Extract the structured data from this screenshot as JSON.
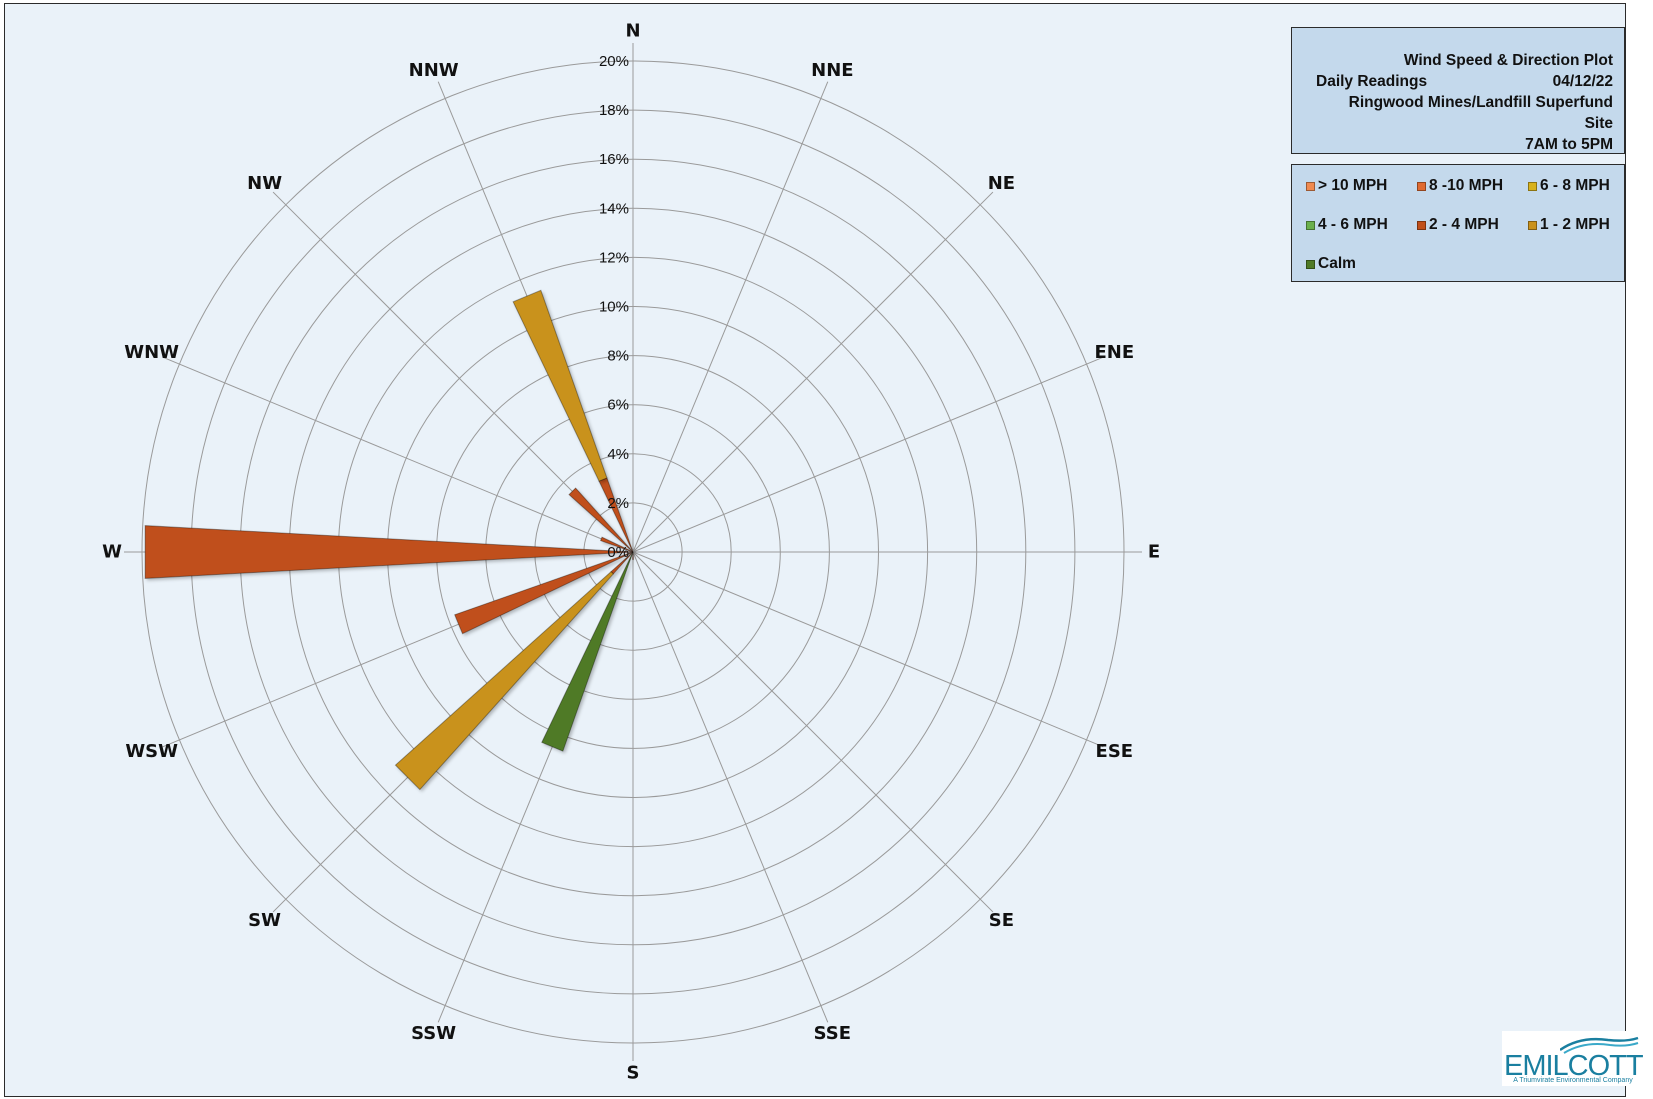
{
  "chart_data": {
    "type": "polar-bar",
    "directions": [
      "N",
      "NNE",
      "NE",
      "ENE",
      "E",
      "ESE",
      "SE",
      "SSE",
      "S",
      "SSW",
      "SW",
      "WSW",
      "W",
      "WNW",
      "NW",
      "NNW"
    ],
    "radial_ticks": [
      "0%",
      "2%",
      "4%",
      "6%",
      "8%",
      "10%",
      "12%",
      "14%",
      "16%",
      "18%",
      "20%"
    ],
    "rmax": 20,
    "series": [
      {
        "name": "> 10 MPH",
        "color": "#f08a50",
        "values": [
          0,
          0,
          0,
          0,
          0,
          0,
          0,
          0,
          0,
          0,
          0,
          0,
          0,
          0,
          0,
          0
        ]
      },
      {
        "name": "8 -10 MPH",
        "color": "#e06a30",
        "values": [
          0,
          0,
          0,
          0,
          0,
          0,
          0,
          0,
          0,
          0,
          0,
          0,
          0,
          0,
          0,
          0
        ]
      },
      {
        "name": "6 - 8 MPH",
        "color": "#d8b21c",
        "values": [
          0,
          0,
          0,
          0,
          0,
          0,
          0,
          0,
          0,
          0,
          0,
          0,
          0,
          0,
          0,
          0
        ]
      },
      {
        "name": "4 - 6 MPH",
        "color": "#6ab04c",
        "values": [
          0,
          0,
          0,
          0,
          0,
          0,
          0,
          0,
          0,
          0,
          0,
          0,
          0,
          0,
          0,
          0
        ]
      },
      {
        "name": "2 - 4 MPH",
        "color": "#c04f1a",
        "values": [
          0,
          0,
          0,
          0,
          0,
          0,
          0,
          0,
          0.3,
          0,
          1.2,
          7.7,
          19.9,
          1.4,
          3.5,
          3.2
        ]
      },
      {
        "name": "1 - 2 MPH",
        "color": "#c9921c",
        "values": [
          0,
          0,
          0,
          0,
          0,
          0,
          0,
          0,
          0,
          0,
          11.8,
          0,
          0,
          0,
          0,
          8.1
        ]
      },
      {
        "name": "Calm",
        "color": "#4f7a26",
        "values": [
          0,
          0,
          0,
          0,
          0,
          0,
          0,
          0,
          0,
          8.6,
          0,
          0,
          0,
          0,
          0,
          0
        ]
      }
    ]
  },
  "title_box": {
    "title": "Wind Speed & Direction Plot",
    "subtitle_left": "Daily Readings",
    "date": "04/12/22",
    "site": "Ringwood Mines/Landfill Superfund Site",
    "time_range": "7AM to 5PM"
  },
  "logo": {
    "name": "EMILCOTT",
    "tagline": "A Triumvirate Environmental Company"
  }
}
